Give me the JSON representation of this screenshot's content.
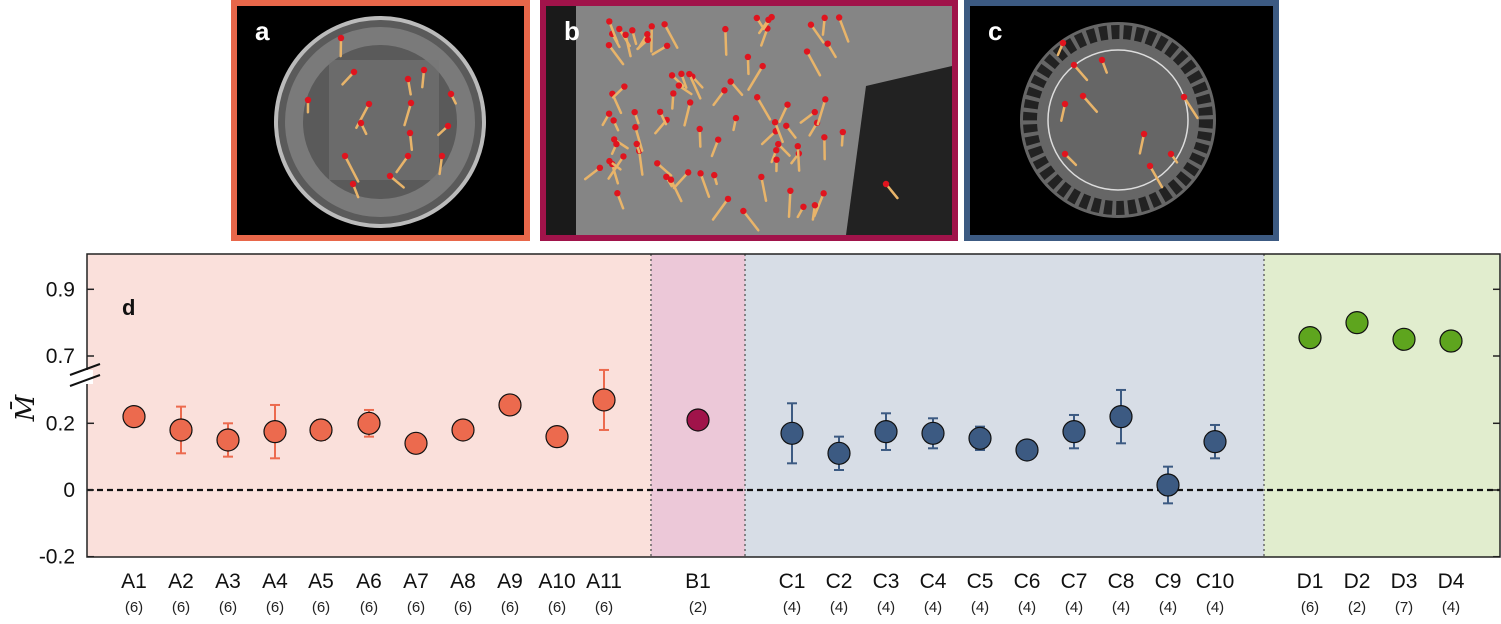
{
  "panels": [
    {
      "letter": "a",
      "border": "#e8674a"
    },
    {
      "letter": "b",
      "border": "#a0134a"
    },
    {
      "letter": "c",
      "border": "#3c5a82"
    }
  ],
  "chart_data": {
    "type": "scatter",
    "panel_letter": "d",
    "ylabel": "M̄",
    "yticks": [
      "-0.2",
      "0",
      "0.2",
      "0.7",
      "0.9"
    ],
    "broken_axis": true,
    "reference_line": 0,
    "groups": [
      {
        "name": "A",
        "color": "#ec6a4e",
        "background": "#fae0db",
        "points": [
          {
            "label": "A1",
            "count": "(6)",
            "y": 0.22,
            "err": null
          },
          {
            "label": "A2",
            "count": "(6)",
            "y": 0.18,
            "err": 0.07
          },
          {
            "label": "A3",
            "count": "(6)",
            "y": 0.15,
            "err": 0.05
          },
          {
            "label": "A4",
            "count": "(6)",
            "y": 0.175,
            "err": 0.08
          },
          {
            "label": "A5",
            "count": "(6)",
            "y": 0.18,
            "err": 0.03
          },
          {
            "label": "A6",
            "count": "(6)",
            "y": 0.2,
            "err": 0.04
          },
          {
            "label": "A7",
            "count": "(6)",
            "y": 0.14,
            "err": null
          },
          {
            "label": "A8",
            "count": "(6)",
            "y": 0.18,
            "err": null
          },
          {
            "label": "A9",
            "count": "(6)",
            "y": 0.255,
            "err": null
          },
          {
            "label": "A10",
            "count": "(6)",
            "y": 0.16,
            "err": null
          },
          {
            "label": "A11",
            "count": "(6)",
            "y": 0.27,
            "err": 0.09
          }
        ]
      },
      {
        "name": "B",
        "color": "#a0134a",
        "background": "#ecc8d8",
        "points": [
          {
            "label": "B1",
            "count": "(2)",
            "y": 0.21,
            "err": null
          }
        ]
      },
      {
        "name": "C",
        "color": "#3c5a82",
        "background": "#d7dde6",
        "points": [
          {
            "label": "C1",
            "count": "(4)",
            "y": 0.17,
            "err": 0.09
          },
          {
            "label": "C2",
            "count": "(4)",
            "y": 0.11,
            "err": 0.05
          },
          {
            "label": "C3",
            "count": "(4)",
            "y": 0.175,
            "err": 0.055
          },
          {
            "label": "C4",
            "count": "(4)",
            "y": 0.17,
            "err": 0.045
          },
          {
            "label": "C5",
            "count": "(4)",
            "y": 0.155,
            "err": 0.035
          },
          {
            "label": "C6",
            "count": "(4)",
            "y": 0.12,
            "err": null
          },
          {
            "label": "C7",
            "count": "(4)",
            "y": 0.175,
            "err": 0.05
          },
          {
            "label": "C8",
            "count": "(4)",
            "y": 0.22,
            "err": 0.08
          },
          {
            "label": "C9",
            "count": "(4)",
            "y": 0.015,
            "err": 0.055
          },
          {
            "label": "C10",
            "count": "(4)",
            "y": 0.145,
            "err": 0.05
          }
        ]
      },
      {
        "name": "D",
        "color": "#5ea51e",
        "background": "#e1edce",
        "points": [
          {
            "label": "D1",
            "count": "(6)",
            "y": 0.755,
            "err": null
          },
          {
            "label": "D2",
            "count": "(2)",
            "y": 0.8,
            "err": null
          },
          {
            "label": "D3",
            "count": "(7)",
            "y": 0.75,
            "err": null
          },
          {
            "label": "D4",
            "count": "(4)",
            "y": 0.745,
            "err": null
          }
        ]
      }
    ]
  }
}
